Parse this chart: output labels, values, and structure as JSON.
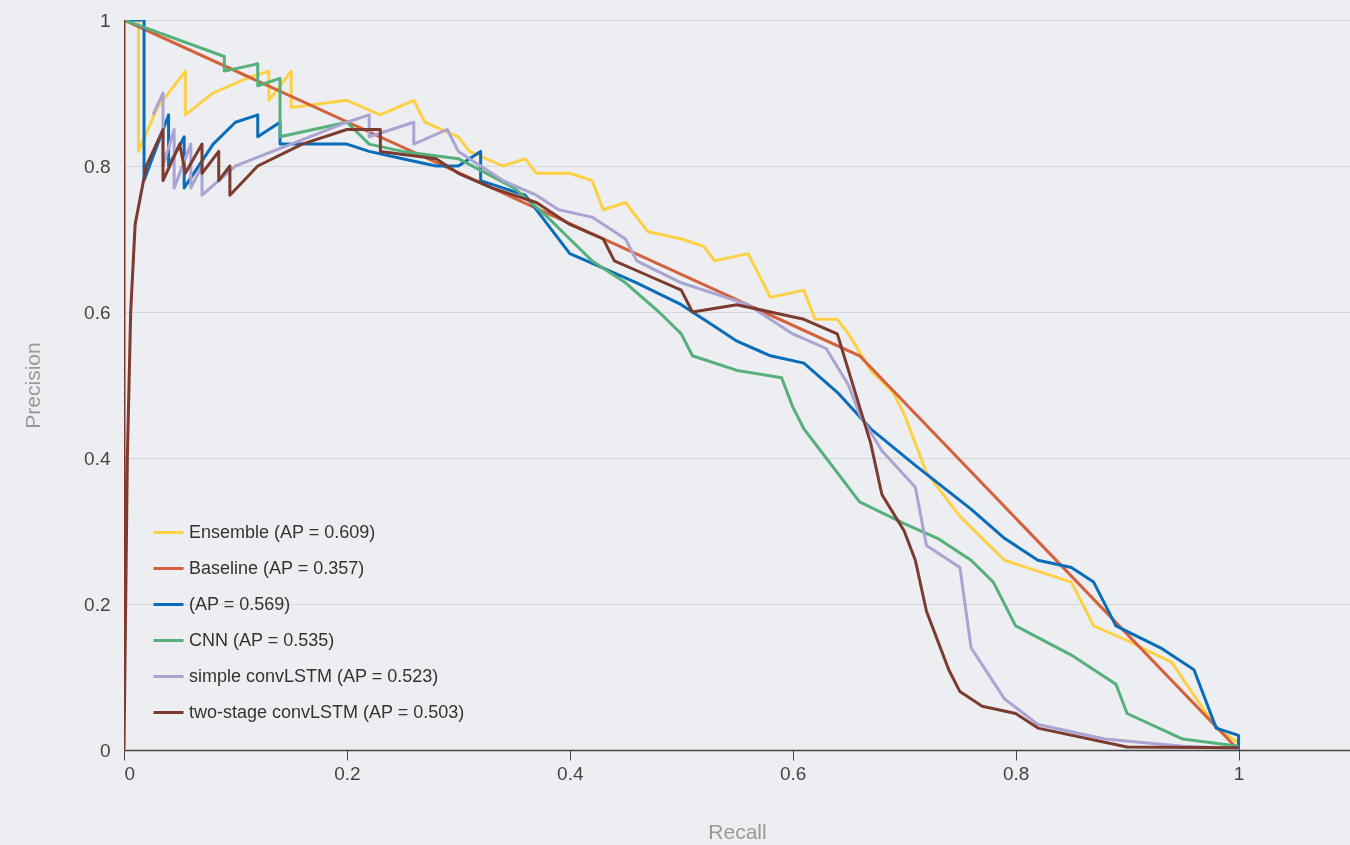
{
  "chart_data": {
    "type": "line",
    "xlabel": "Recall",
    "ylabel": "Precision",
    "xlim": [
      0,
      1.1
    ],
    "xticks": [
      0,
      0.2,
      0.4,
      0.6,
      0.8,
      1
    ],
    "ylim": [
      0,
      1
    ],
    "yticks": [
      0,
      0.2,
      0.4,
      0.6,
      0.8,
      1
    ],
    "grid": "y",
    "legend": "bottom left",
    "marker": "none",
    "line_style": "solid",
    "series": [
      {
        "name": "Ensemble (AP = 0.609)",
        "color": "#fdd146",
        "x": [
          0,
          0.013,
          0.013,
          0.03,
          0.05,
          0.055,
          0.055,
          0.08,
          0.11,
          0.13,
          0.13,
          0.15,
          0.15,
          0.2,
          0.23,
          0.26,
          0.27,
          0.3,
          0.31,
          0.34,
          0.36,
          0.37,
          0.4,
          0.42,
          0.43,
          0.45,
          0.47,
          0.5,
          0.52,
          0.53,
          0.56,
          0.58,
          0.61,
          0.62,
          0.64,
          0.65,
          0.67,
          0.69,
          0.7,
          0.72,
          0.75,
          0.79,
          0.85,
          0.87,
          0.9,
          0.94,
          0.98,
          1
        ],
        "values": [
          1,
          1,
          0.82,
          0.88,
          0.92,
          0.93,
          0.87,
          0.9,
          0.92,
          0.93,
          0.89,
          0.93,
          0.88,
          0.89,
          0.87,
          0.89,
          0.86,
          0.84,
          0.82,
          0.8,
          0.81,
          0.79,
          0.79,
          0.78,
          0.74,
          0.75,
          0.71,
          0.7,
          0.69,
          0.67,
          0.68,
          0.62,
          0.63,
          0.59,
          0.59,
          0.57,
          0.52,
          0.49,
          0.46,
          0.38,
          0.32,
          0.26,
          0.23,
          0.17,
          0.15,
          0.12,
          0.03,
          0.01
        ]
      },
      {
        "name": "Baseline (AP = 0.357)",
        "color": "#d5603c",
        "x": [
          0,
          0.66,
          1
        ],
        "values": [
          1,
          0.54,
          0
        ]
      },
      {
        "name": "(AP = 0.569)",
        "color": "#0a6dbb",
        "x": [
          0,
          0.018,
          0.018,
          0.04,
          0.04,
          0.054,
          0.054,
          0.08,
          0.1,
          0.12,
          0.12,
          0.14,
          0.14,
          0.2,
          0.22,
          0.25,
          0.28,
          0.3,
          0.32,
          0.32,
          0.36,
          0.38,
          0.4,
          0.43,
          0.46,
          0.5,
          0.53,
          0.55,
          0.58,
          0.61,
          0.64,
          0.67,
          0.71,
          0.76,
          0.79,
          0.82,
          0.85,
          0.87,
          0.89,
          0.93,
          0.96,
          0.98,
          1,
          1
        ],
        "values": [
          1,
          1,
          0.78,
          0.87,
          0.8,
          0.84,
          0.77,
          0.83,
          0.86,
          0.87,
          0.84,
          0.86,
          0.83,
          0.83,
          0.82,
          0.81,
          0.8,
          0.8,
          0.82,
          0.78,
          0.76,
          0.72,
          0.68,
          0.66,
          0.64,
          0.61,
          0.58,
          0.56,
          0.54,
          0.53,
          0.49,
          0.44,
          0.39,
          0.33,
          0.29,
          0.26,
          0.25,
          0.23,
          0.17,
          0.14,
          0.11,
          0.03,
          0.02,
          0
        ]
      },
      {
        "name": "CNN (AP = 0.535)",
        "color": "#56b07b",
        "x": [
          0,
          0.09,
          0.09,
          0.12,
          0.12,
          0.14,
          0.14,
          0.2,
          0.22,
          0.25,
          0.3,
          0.35,
          0.38,
          0.4,
          0.42,
          0.45,
          0.48,
          0.5,
          0.51,
          0.55,
          0.59,
          0.6,
          0.61,
          0.63,
          0.66,
          0.7,
          0.73,
          0.76,
          0.78,
          0.8,
          0.85,
          0.89,
          0.9,
          0.95,
          1
        ],
        "values": [
          1,
          0.95,
          0.93,
          0.94,
          0.91,
          0.92,
          0.84,
          0.86,
          0.83,
          0.82,
          0.81,
          0.77,
          0.73,
          0.7,
          0.67,
          0.64,
          0.6,
          0.57,
          0.54,
          0.52,
          0.51,
          0.47,
          0.44,
          0.4,
          0.34,
          0.31,
          0.29,
          0.26,
          0.23,
          0.17,
          0.13,
          0.09,
          0.05,
          0.015,
          0.005
        ]
      },
      {
        "name": "simple convLSTM (AP = 0.523)",
        "color": "#aba4d2",
        "x": [
          0.026,
          0.035,
          0.035,
          0.045,
          0.045,
          0.06,
          0.06,
          0.07,
          0.07,
          0.1,
          0.15,
          0.2,
          0.22,
          0.22,
          0.26,
          0.26,
          0.29,
          0.3,
          0.34,
          0.37,
          0.39,
          0.42,
          0.45,
          0.46,
          0.5,
          0.54,
          0.56,
          0.6,
          0.63,
          0.65,
          0.66,
          0.68,
          0.71,
          0.72,
          0.75,
          0.76,
          0.79,
          0.82,
          0.88,
          0.95,
          1
        ],
        "values": [
          0.87,
          0.9,
          0.8,
          0.85,
          0.77,
          0.83,
          0.77,
          0.8,
          0.76,
          0.8,
          0.83,
          0.86,
          0.87,
          0.84,
          0.86,
          0.83,
          0.85,
          0.82,
          0.78,
          0.76,
          0.74,
          0.73,
          0.7,
          0.67,
          0.64,
          0.62,
          0.61,
          0.57,
          0.55,
          0.5,
          0.46,
          0.41,
          0.36,
          0.28,
          0.25,
          0.14,
          0.07,
          0.035,
          0.015,
          0.005,
          0.002
        ]
      },
      {
        "name": "two-stage convLSTM (AP = 0.503)",
        "color": "#7c3b2f",
        "x": [
          0,
          0,
          0,
          0.003,
          0.006,
          0.01,
          0.02,
          0.035,
          0.035,
          0.05,
          0.055,
          0.07,
          0.07,
          0.085,
          0.085,
          0.095,
          0.095,
          0.12,
          0.16,
          0.2,
          0.23,
          0.23,
          0.28,
          0.3,
          0.33,
          0.37,
          0.4,
          0.43,
          0.44,
          0.47,
          0.5,
          0.51,
          0.55,
          0.58,
          0.61,
          0.64,
          0.66,
          0.67,
          0.68,
          0.7,
          0.71,
          0.72,
          0.74,
          0.75,
          0.77,
          0.8,
          0.82,
          0.9,
          1
        ],
        "values": [
          0,
          1,
          0,
          0.4,
          0.6,
          0.72,
          0.8,
          0.85,
          0.78,
          0.83,
          0.79,
          0.83,
          0.79,
          0.82,
          0.78,
          0.8,
          0.76,
          0.8,
          0.83,
          0.85,
          0.85,
          0.82,
          0.81,
          0.79,
          0.77,
          0.75,
          0.72,
          0.7,
          0.67,
          0.65,
          0.63,
          0.6,
          0.61,
          0.6,
          0.59,
          0.57,
          0.47,
          0.42,
          0.35,
          0.3,
          0.26,
          0.19,
          0.11,
          0.08,
          0.06,
          0.05,
          0.03,
          0.004,
          0.003
        ]
      }
    ]
  }
}
